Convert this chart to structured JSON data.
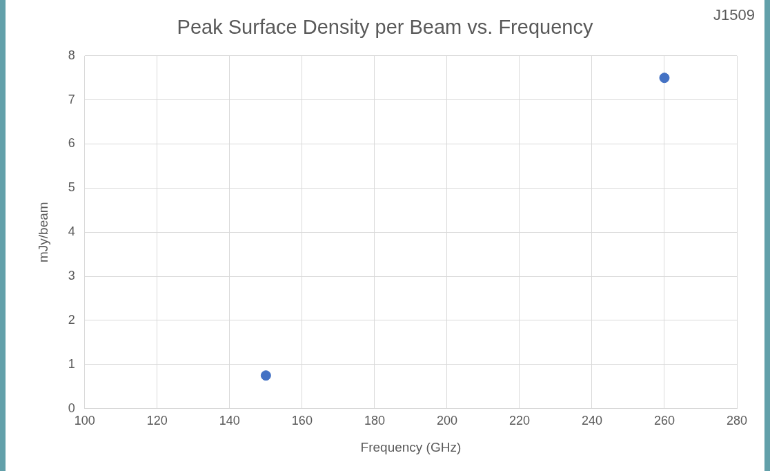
{
  "chart_data": {
    "type": "scatter",
    "title": "Peak Surface Density per Beam vs. Frequency",
    "xlabel": "Frequency (GHz)",
    "ylabel": "mJy/beam",
    "annotations": [
      "J1509"
    ],
    "x": [
      150,
      260
    ],
    "series": [
      {
        "color": "#4472c4",
        "values": [
          0.75,
          7.5
        ]
      }
    ],
    "xlim": [
      100,
      280
    ],
    "xticks": [
      100,
      120,
      140,
      160,
      180,
      200,
      220,
      240,
      260,
      280
    ],
    "ylim": [
      0,
      8
    ],
    "yticks": [
      0,
      1,
      2,
      3,
      4,
      5,
      6,
      7,
      8
    ],
    "grid": true,
    "legend": false,
    "marker": "circle"
  }
}
